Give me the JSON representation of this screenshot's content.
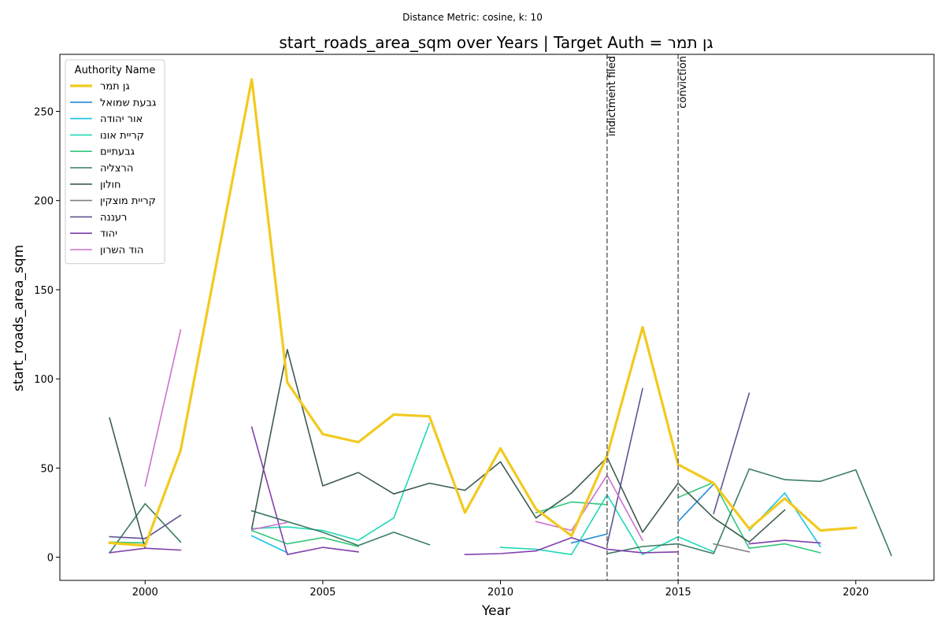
{
  "chart_data": {
    "type": "line",
    "suptitle": "Distance Metric: cosine, k: 10",
    "title": "start_roads_area_sqm over Years | Target Auth = גן תמר",
    "xlabel": "Year",
    "ylabel": "start_roads_area_sqm",
    "xlim": [
      1997.6,
      2022.2
    ],
    "ylim": [
      -13,
      282
    ],
    "x_ticks": [
      2000,
      2005,
      2010,
      2015,
      2020
    ],
    "y_ticks": [
      0,
      50,
      100,
      150,
      200,
      250
    ],
    "legend_title": "Authority Name",
    "legend_position": "upper-left",
    "events": [
      {
        "x": 2013,
        "label": "indictment filed"
      },
      {
        "x": 2015,
        "label": "conviction"
      }
    ],
    "series": [
      {
        "name": "גן תמר",
        "color": "#f2ca1f",
        "target": true,
        "points": [
          [
            1999,
            8
          ],
          [
            2000,
            6.5
          ],
          [
            2001,
            60
          ],
          [
            2003,
            268
          ],
          [
            2004,
            98
          ],
          [
            2005,
            69
          ],
          [
            2006,
            64.5
          ],
          [
            2007,
            80
          ],
          [
            2008,
            79
          ],
          [
            2009,
            25
          ],
          [
            2010,
            61
          ],
          [
            2011,
            27
          ],
          [
            2012,
            12
          ],
          [
            2013,
            57
          ],
          [
            2014,
            129
          ],
          [
            2015,
            52
          ],
          [
            2016,
            41.5
          ],
          [
            2017,
            16
          ],
          [
            2018,
            33
          ],
          [
            2019,
            15
          ],
          [
            2020,
            16.5
          ]
        ]
      },
      {
        "name": "גבעת שמואל",
        "color": "#1f8ad6",
        "points": [
          [
            2012,
            8
          ],
          [
            2013,
            13
          ],
          null,
          [
            2015,
            20
          ],
          [
            2016,
            41
          ]
        ]
      },
      {
        "name": "אור יהודה",
        "color": "#19c3ec",
        "points": [
          [
            2003,
            12
          ],
          [
            2004,
            2.5
          ],
          null,
          [
            2017,
            15
          ],
          [
            2018,
            36
          ],
          [
            2019,
            6
          ]
        ]
      },
      {
        "name": "קריית אונו",
        "color": "#1fd9b5",
        "points": [
          [
            2003,
            16
          ],
          [
            2004,
            17
          ],
          [
            2005,
            15
          ],
          [
            2006,
            9.5
          ],
          [
            2007,
            22
          ],
          [
            2008,
            75
          ],
          null,
          [
            2010,
            5.5
          ],
          [
            2011,
            4.5
          ],
          [
            2012,
            1.5
          ],
          [
            2013,
            35
          ],
          [
            2014,
            1.5
          ],
          [
            2015,
            11.5
          ],
          [
            2016,
            3
          ]
        ]
      },
      {
        "name": "גבעתיים",
        "color": "#32c87b",
        "points": [
          [
            1999,
            8.5
          ],
          [
            2000,
            8
          ],
          null,
          [
            2003,
            15
          ],
          [
            2004,
            7.5
          ],
          [
            2005,
            11
          ],
          [
            2006,
            6
          ],
          null,
          [
            2011,
            25
          ],
          [
            2012,
            31
          ],
          [
            2013,
            29.5
          ],
          null,
          [
            2015,
            33.5
          ],
          [
            2016,
            42
          ],
          [
            2017,
            5
          ],
          [
            2018,
            7.5
          ],
          [
            2019,
            2.5
          ]
        ]
      },
      {
        "name": "הרצליה",
        "color": "#3b7d62",
        "points": [
          [
            1999,
            2.5
          ],
          [
            2000,
            30
          ],
          [
            2001,
            8.5
          ],
          null,
          [
            2003,
            26
          ],
          [
            2004,
            20
          ],
          [
            2005,
            14
          ],
          [
            2006,
            6.5
          ],
          [
            2007,
            14
          ],
          [
            2008,
            7
          ],
          null,
          [
            2013,
            2
          ],
          [
            2014,
            6
          ],
          [
            2015,
            7.5
          ],
          [
            2016,
            2
          ],
          [
            2017,
            49.5
          ],
          [
            2018,
            43.5
          ],
          [
            2019,
            42.5
          ],
          [
            2020,
            49
          ],
          [
            2021,
            1
          ]
        ]
      },
      {
        "name": "חולון",
        "color": "#3d5b50",
        "points": [
          [
            1999,
            78
          ],
          [
            2000,
            5
          ],
          null,
          [
            2003,
            16
          ],
          [
            2004,
            116.5
          ],
          [
            2005,
            40
          ],
          [
            2006,
            47.5
          ],
          [
            2007,
            35.5
          ],
          [
            2008,
            41.5
          ],
          [
            2009,
            37.5
          ],
          [
            2010,
            53.5
          ],
          [
            2011,
            22
          ],
          [
            2012,
            36
          ],
          [
            2013,
            56
          ],
          [
            2014,
            14
          ],
          [
            2015,
            41.5
          ],
          [
            2016,
            22
          ],
          [
            2017,
            8.5
          ],
          [
            2018,
            26.5
          ]
        ]
      },
      {
        "name": "קריית מוצקין",
        "color": "#7f7f7f",
        "points": [
          [
            2016,
            7.5
          ],
          [
            2017,
            3
          ]
        ]
      },
      {
        "name": "רעננה",
        "color": "#5e5590",
        "points": [
          [
            1999,
            11.5
          ],
          [
            2000,
            10.5
          ],
          [
            2001,
            23.5
          ],
          null,
          [
            2013,
            7
          ],
          [
            2014,
            94.5
          ],
          null,
          [
            2016,
            24.5
          ],
          [
            2017,
            92
          ]
        ]
      },
      {
        "name": "יהוד",
        "color": "#7f3fac",
        "points": [
          [
            1999,
            2.5
          ],
          [
            2000,
            5
          ],
          [
            2001,
            4
          ],
          null,
          [
            2003,
            73
          ],
          [
            2004,
            1.5
          ],
          [
            2005,
            5.5
          ],
          [
            2006,
            3
          ],
          null,
          [
            2009,
            1.5
          ],
          [
            2010,
            2
          ],
          [
            2011,
            3.5
          ],
          [
            2012,
            11
          ],
          [
            2013,
            4.5
          ],
          [
            2014,
            2.5
          ],
          [
            2015,
            3
          ],
          null,
          [
            2017,
            7.5
          ],
          [
            2018,
            9.5
          ],
          [
            2019,
            8
          ]
        ]
      },
      {
        "name": "הוד השרון",
        "color": "#cc71cf",
        "points": [
          [
            2000,
            40
          ],
          [
            2001,
            127.5
          ],
          null,
          [
            2003,
            15.5
          ],
          [
            2004,
            19.5
          ],
          null,
          [
            2011,
            20
          ],
          [
            2012,
            15
          ],
          [
            2013,
            46
          ],
          [
            2014,
            9.5
          ]
        ]
      }
    ]
  }
}
